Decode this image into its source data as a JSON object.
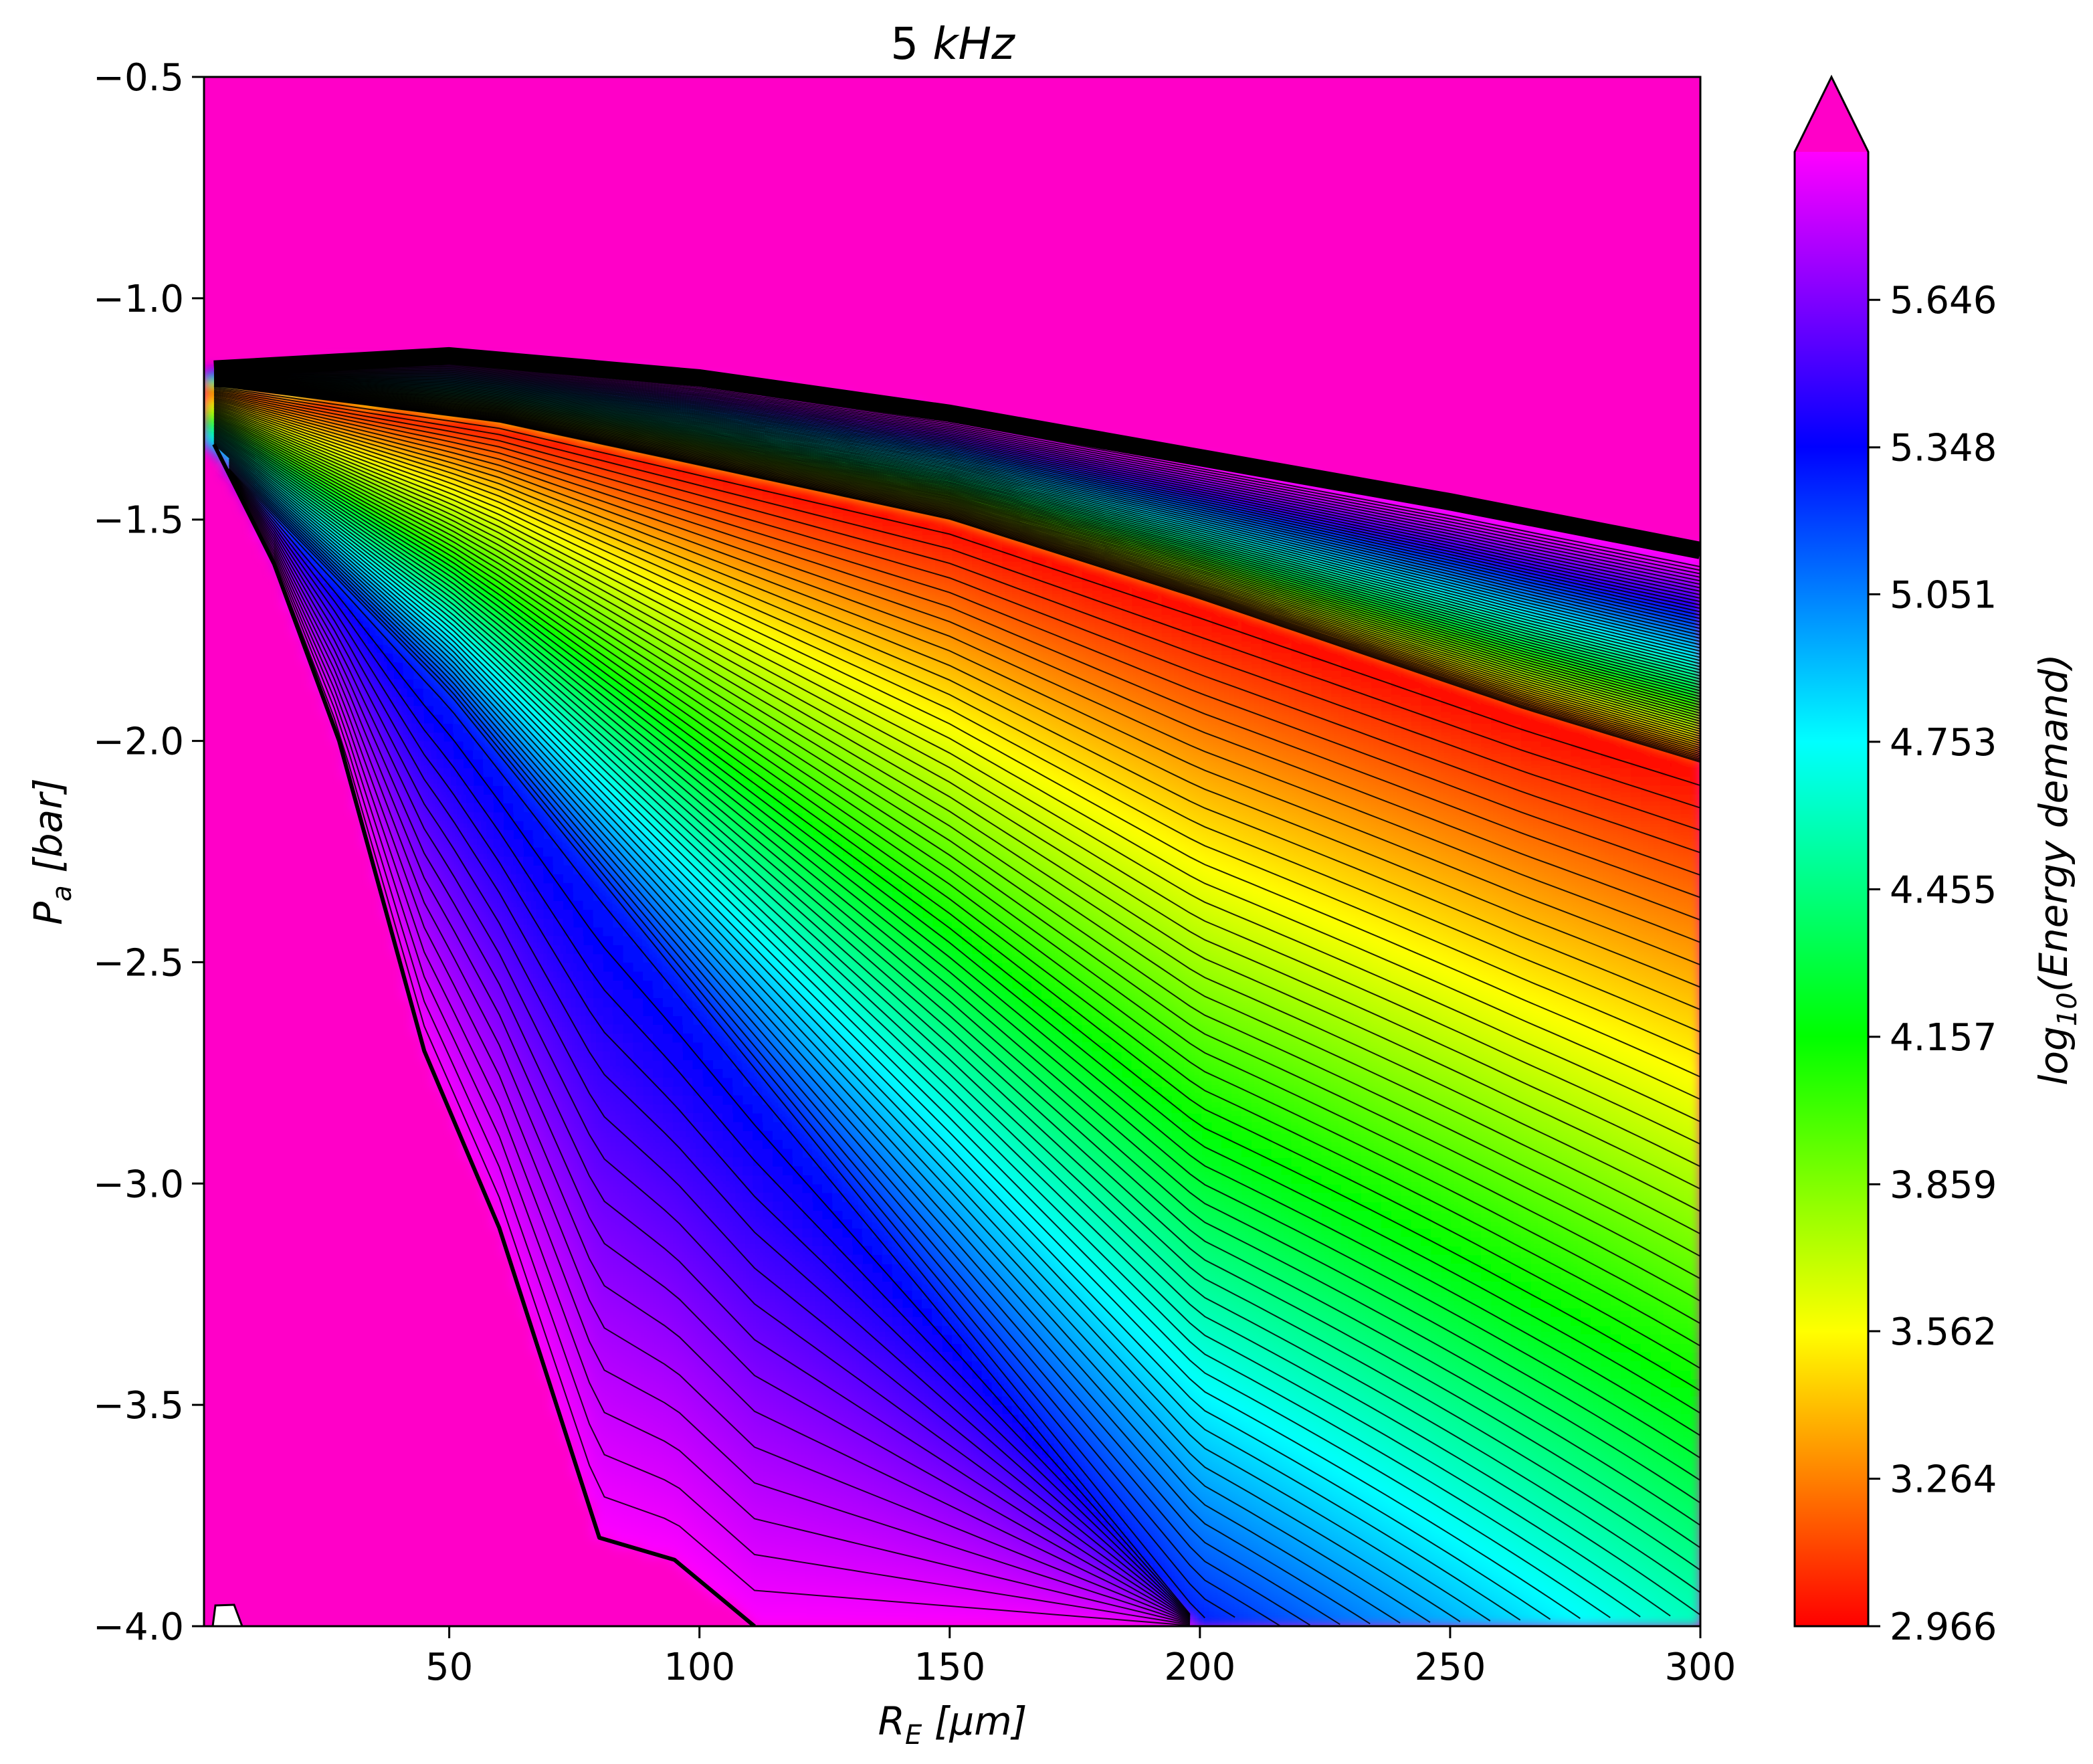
{
  "chart_data": {
    "type": "heatmap",
    "subtype": "filled contour with contour lines",
    "title": "5 kHz",
    "title_parts": {
      "number": "5",
      "unit": "kHz"
    },
    "xlabel": "R_E [μm]",
    "xlabel_parts": {
      "symbol": "R",
      "sub": "E",
      "unit": "[μm]"
    },
    "ylabel": "P_a [bar]",
    "ylabel_parts": {
      "symbol": "P",
      "sub": "a",
      "unit": "[bar]"
    },
    "xlim": [
      1,
      300
    ],
    "ylim": [
      -4.0,
      -0.5
    ],
    "x_ticks": [
      50,
      100,
      150,
      200,
      250,
      300
    ],
    "x_tick_labels": [
      "50",
      "100",
      "150",
      "200",
      "250",
      "300"
    ],
    "y_ticks": [
      -0.5,
      -1.0,
      -1.5,
      -2.0,
      -2.5,
      -3.0,
      -3.5,
      -4.0
    ],
    "y_tick_labels": [
      "−0.5",
      "−1.0",
      "−1.5",
      "−2.0",
      "−2.5",
      "−3.0",
      "−3.5",
      "−4.0"
    ],
    "colorbar": {
      "label": "log10(Energy demand)",
      "label_parts": {
        "prefix": "log",
        "sub": "10",
        "body": "(Energy demand)"
      },
      "min": 2.966,
      "max": 5.945,
      "extend": "max",
      "ticks": [
        2.966,
        3.264,
        3.562,
        3.859,
        4.157,
        4.455,
        4.753,
        5.051,
        5.348,
        5.646
      ],
      "tick_labels": [
        "2.966",
        "3.264",
        "3.562",
        "3.859",
        "4.157",
        "4.455",
        "4.753",
        "5.051",
        "5.348",
        "5.646"
      ],
      "colormap": [
        "#ff0000",
        "#ff8000",
        "#ffff00",
        "#80ff00",
        "#00ff00",
        "#00ff80",
        "#00ffff",
        "#0080ff",
        "#0000ff",
        "#8000ff",
        "#ff00ff"
      ],
      "over_color": "#ff00c8"
    },
    "background_color": "#ff00c8",
    "grid": false,
    "regions": {
      "upper_boundary": [
        [
          3,
          -1.16
        ],
        [
          50,
          -1.13
        ],
        [
          100,
          -1.18
        ],
        [
          150,
          -1.26
        ],
        [
          200,
          -1.36
        ],
        [
          250,
          -1.46
        ],
        [
          300,
          -1.57
        ]
      ],
      "lower_boundary": [
        [
          3,
          -1.33
        ],
        [
          15,
          -1.6
        ],
        [
          28,
          -2.0
        ],
        [
          45,
          -2.7
        ],
        [
          60,
          -3.1
        ],
        [
          80,
          -3.8
        ],
        [
          95,
          -3.85
        ],
        [
          111,
          -4.0
        ]
      ],
      "minimum_ridge": [
        [
          5,
          -1.2
        ],
        [
          60,
          -1.28
        ],
        [
          150,
          -1.5
        ],
        [
          200,
          -1.68
        ],
        [
          265,
          -1.93
        ],
        [
          300,
          -2.05
        ]
      ],
      "maximum_ridge": [
        [
          3,
          -1.35
        ],
        [
          50,
          -1.9
        ],
        [
          100,
          -2.6
        ],
        [
          150,
          -3.3
        ],
        [
          200,
          -4.0
        ]
      ]
    }
  }
}
